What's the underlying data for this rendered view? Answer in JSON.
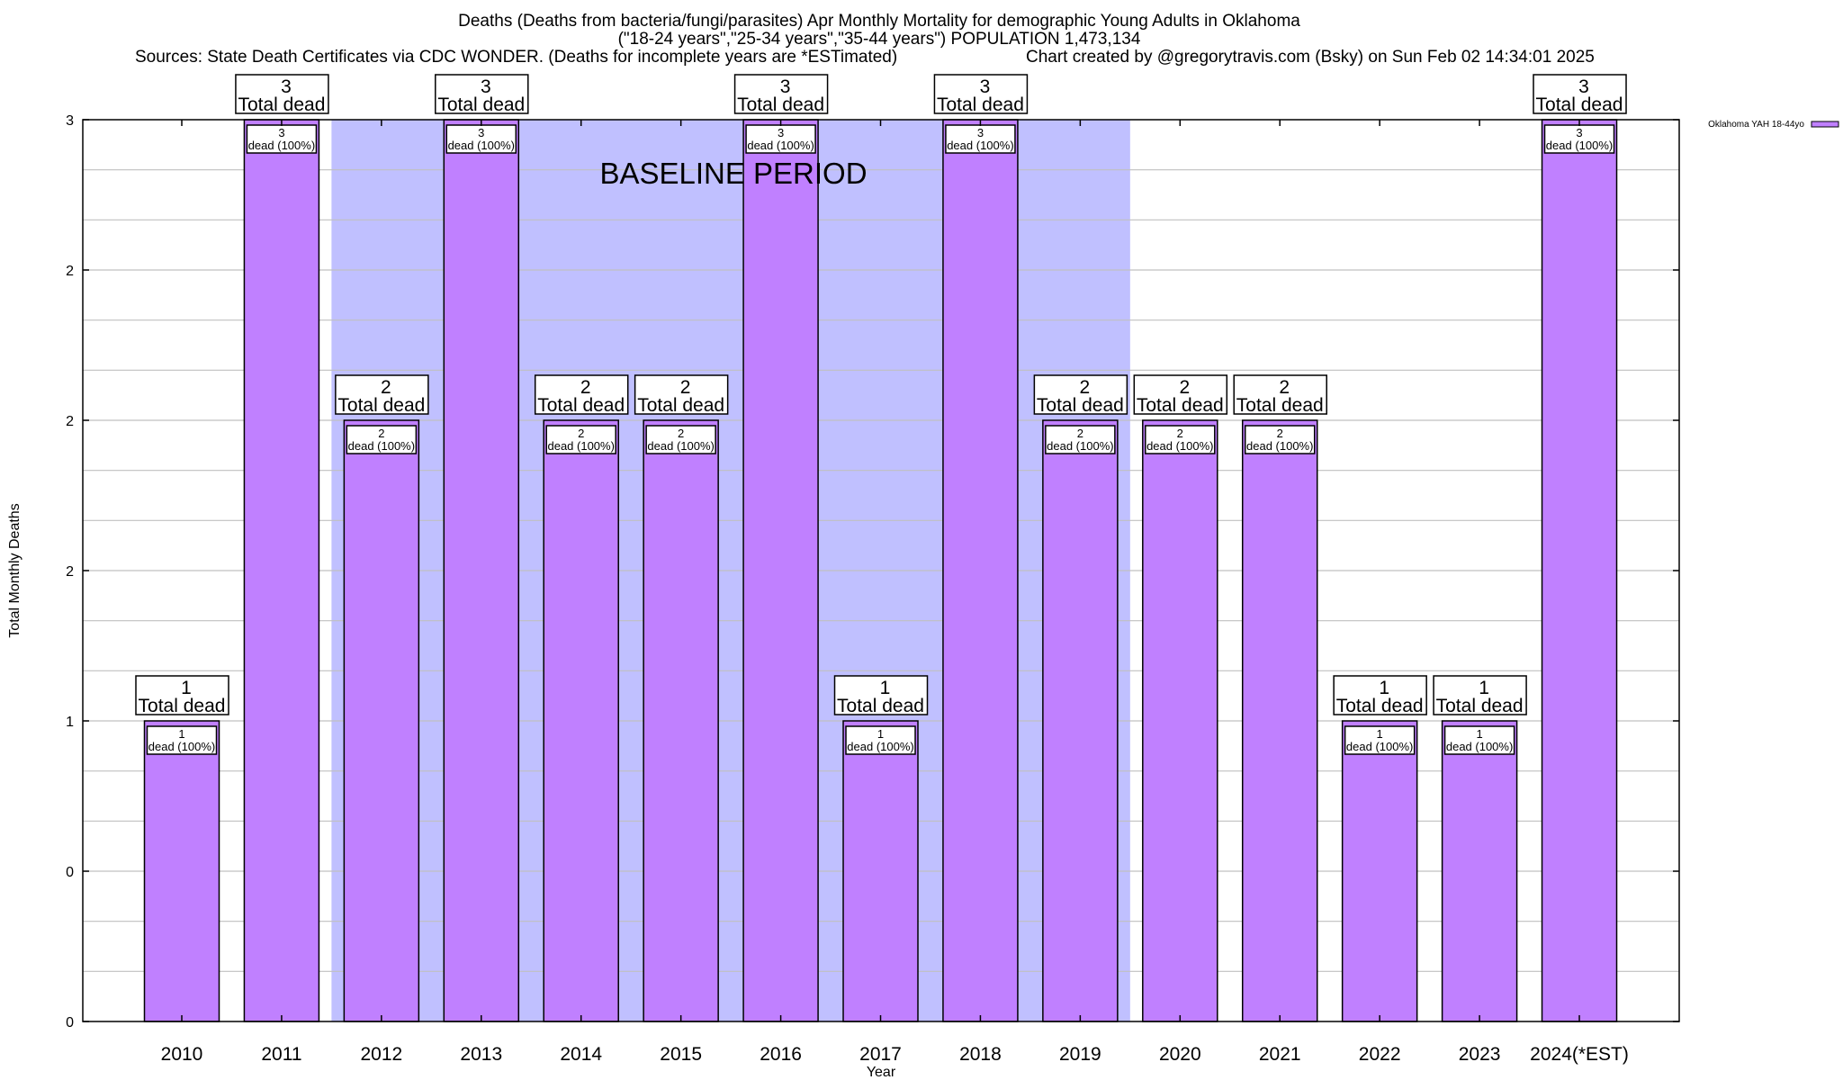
{
  "header": {
    "title_line1": "Deaths (Deaths from bacteria/fungi/parasites) Apr Monthly Mortality for demographic Young Adults in Oklahoma",
    "title_line2": "(\"18-24 years\",\"25-34 years\",\"35-44 years\") POPULATION 1,473,134",
    "sources": "Sources: State Death Certificates via CDC WONDER. (Deaths for incomplete years are *ESTimated)",
    "credit": "Chart created by @gregorytravis.com (Bsky) on Sun Feb 02 14:34:01 2025"
  },
  "chart_data": {
    "type": "bar",
    "title": "Deaths (Deaths from bacteria/fungi/parasites) Apr Monthly Mortality for demographic Young Adults in Oklahoma",
    "subtitle": "(\"18-24 years\",\"25-34 years\",\"35-44 years\") POPULATION 1,473,134",
    "xlabel": "Year",
    "ylabel": "Total Monthly Deaths",
    "ylim": [
      0,
      3
    ],
    "yticks": [
      0,
      0.5,
      1,
      1.5,
      2,
      2.5,
      3
    ],
    "ytick_labels": [
      "0",
      "0",
      "1",
      "2",
      "2",
      "2",
      "3"
    ],
    "grid": true,
    "categories": [
      "2010",
      "2011",
      "2012",
      "2013",
      "2014",
      "2015",
      "2016",
      "2017",
      "2018",
      "2019",
      "2020",
      "2021",
      "2022",
      "2023",
      "2024(*EST)"
    ],
    "series": [
      {
        "name": "Oklahoma YAH 18-44yo",
        "color": "#c080ff",
        "values": [
          1,
          3,
          2,
          3,
          2,
          2,
          3,
          1,
          3,
          2,
          2,
          2,
          1,
          1,
          3
        ]
      }
    ],
    "total_label_suffix": "Total dead",
    "inner_label_suffix": "dead (100%)",
    "baseline_period": {
      "label": "BASELINE PERIOD",
      "from": "2012",
      "to": "2019",
      "color": "#c0c0ff"
    },
    "legend": {
      "position": "top-right",
      "entries": [
        "Oklahoma YAH 18-44yo"
      ]
    }
  }
}
